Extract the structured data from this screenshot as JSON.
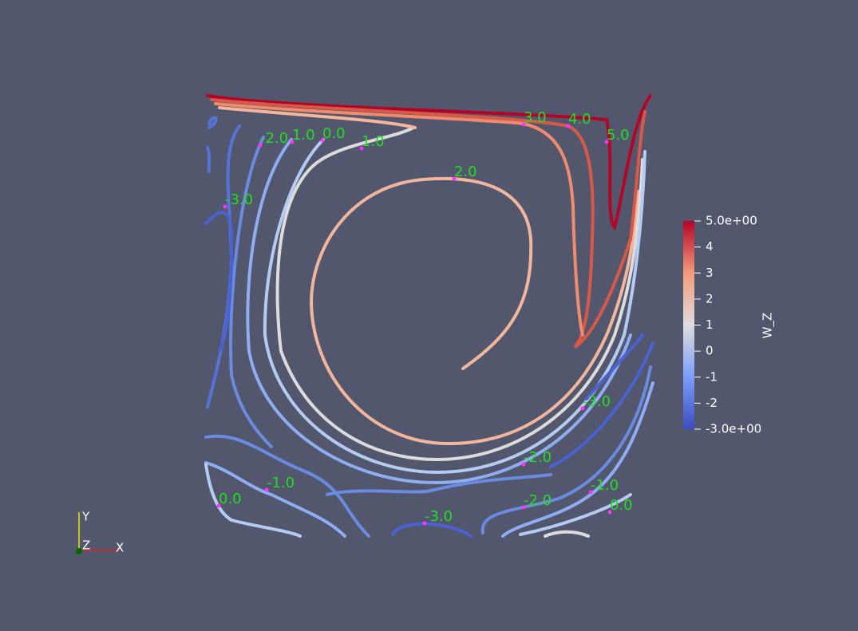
{
  "colorbar": {
    "title": "W_Z",
    "range": [
      -3,
      5
    ],
    "ticks": [
      {
        "value": 5,
        "label": "5.0e+00"
      },
      4,
      3,
      2,
      1,
      0,
      -1,
      -2,
      {
        "value": -3,
        "label": "-3.0e+00"
      }
    ]
  },
  "contour_labels": [
    "3.0",
    "4.0",
    "5.0",
    "-2.0",
    "1.0",
    "0.0",
    "1.0",
    "2.0",
    "-3.0",
    "-3.0",
    "-2.0",
    "-1.0",
    "0.0",
    "-2.0",
    "-1.0",
    "0.0",
    "-3.0"
  ],
  "axes": {
    "y": "Y",
    "z": "Z",
    "x": "X"
  }
}
